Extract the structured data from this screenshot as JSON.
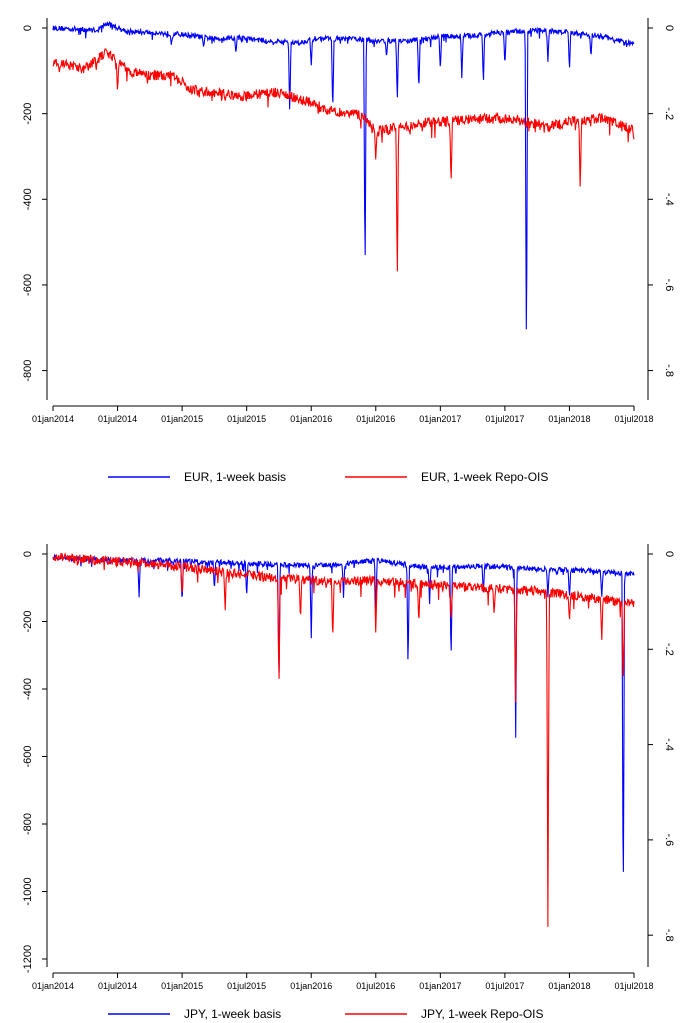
{
  "chart_data": [
    {
      "type": "line",
      "x_ticks": [
        "01jan2014",
        "01jul2014",
        "01jan2015",
        "01jul2015",
        "01jan2016",
        "01jul2016",
        "01jan2017",
        "01jul2017",
        "01jan2018",
        "01jul2018"
      ],
      "y_left_ticks": [
        "0",
        "-200",
        "-400",
        "-600",
        "-800"
      ],
      "y_right_ticks": [
        "0",
        "-.2",
        "-.4",
        "-.6",
        "-.8"
      ],
      "ylim_left": [
        -850,
        0
      ],
      "ylim_right": [
        -0.85,
        0
      ],
      "series": [
        {
          "name": "EUR, 1-week basis",
          "color": "#0000ff",
          "axis": "left",
          "base": [
            [
              0,
              0
            ],
            [
              4,
              -5
            ],
            [
              5,
              10
            ],
            [
              7,
              -8
            ],
            [
              12,
              -15
            ],
            [
              15,
              -25
            ],
            [
              17,
              -22
            ],
            [
              20,
              -30
            ],
            [
              23,
              -35
            ],
            [
              24,
              -25
            ],
            [
              28,
              -25
            ],
            [
              30,
              -30
            ],
            [
              33,
              -30
            ],
            [
              36,
              -20
            ],
            [
              39,
              -18
            ],
            [
              42,
              -10
            ],
            [
              45,
              -5
            ],
            [
              48,
              -10
            ],
            [
              51,
              -20
            ],
            [
              54,
              -38
            ]
          ],
          "spikes": [
            [
              11,
              -40
            ],
            [
              14,
              -45
            ],
            [
              17,
              -60
            ],
            [
              22,
              -200
            ],
            [
              24,
              -90
            ],
            [
              26,
              -200
            ],
            [
              29,
              -590
            ],
            [
              31,
              -70
            ],
            [
              32,
              -170
            ],
            [
              34,
              -150
            ],
            [
              36,
              -100
            ],
            [
              38,
              -120
            ],
            [
              40,
              -130
            ],
            [
              42,
              -90
            ],
            [
              44,
              -800
            ],
            [
              46,
              -80
            ],
            [
              48,
              -100
            ],
            [
              50,
              -70
            ]
          ],
          "noise": 6
        },
        {
          "name": "EUR, 1-week Repo-OIS",
          "color": "#ff0000",
          "axis": "left",
          "base": [
            [
              0,
              -80
            ],
            [
              3,
              -95
            ],
            [
              5,
              -55
            ],
            [
              7,
              -100
            ],
            [
              9,
              -110
            ],
            [
              11,
              -110
            ],
            [
              13,
              -145
            ],
            [
              15,
              -150
            ],
            [
              17,
              -160
            ],
            [
              19,
              -155
            ],
            [
              21,
              -150
            ],
            [
              24,
              -175
            ],
            [
              26,
              -195
            ],
            [
              28,
              -200
            ],
            [
              29,
              -210
            ],
            [
              30,
              -240
            ],
            [
              33,
              -230
            ],
            [
              35,
              -220
            ],
            [
              38,
              -215
            ],
            [
              42,
              -210
            ],
            [
              44,
              -220
            ],
            [
              46,
              -230
            ],
            [
              48,
              -220
            ],
            [
              51,
              -210
            ],
            [
              53,
              -230
            ],
            [
              54,
              -240
            ]
          ],
          "spikes": [
            [
              6,
              -150
            ],
            [
              16,
              -170
            ],
            [
              30,
              -310
            ],
            [
              32,
              -590
            ],
            [
              37,
              -370
            ],
            [
              45,
              -220
            ],
            [
              49,
              -380
            ],
            [
              54,
              -260
            ]
          ],
          "noise": 12
        }
      ]
    },
    {
      "type": "line",
      "x_ticks": [
        "01jan2014",
        "01jul2014",
        "01jan2015",
        "01jul2015",
        "01jan2016",
        "01jul2016",
        "01jan2017",
        "01jul2017",
        "01jan2018",
        "01jul2018"
      ],
      "y_left_ticks": [
        "0",
        "-200",
        "-400",
        "-600",
        "-800",
        "-1000",
        "-1200"
      ],
      "y_right_ticks": [
        "0",
        "-.2",
        "-.4",
        "-.6",
        "-.8"
      ],
      "ylim_left": [
        -1200,
        0
      ],
      "ylim_right": [
        -0.85,
        0
      ],
      "series": [
        {
          "name": "JPY, 1-week basis",
          "color": "#0000ff",
          "axis": "left",
          "base": [
            [
              0,
              -10
            ],
            [
              6,
              -20
            ],
            [
              10,
              -20
            ],
            [
              15,
              -25
            ],
            [
              20,
              -30
            ],
            [
              25,
              -35
            ],
            [
              30,
              -20
            ],
            [
              35,
              -40
            ],
            [
              40,
              -35
            ],
            [
              45,
              -45
            ],
            [
              50,
              -50
            ],
            [
              54,
              -60
            ]
          ],
          "spikes": [
            [
              8,
              -130
            ],
            [
              12,
              -150
            ],
            [
              15,
              -110
            ],
            [
              18,
              -130
            ],
            [
              21,
              -380
            ],
            [
              24,
              -260
            ],
            [
              27,
              -130
            ],
            [
              30,
              -180
            ],
            [
              33,
              -340
            ],
            [
              35,
              -150
            ],
            [
              37,
              -320
            ],
            [
              40,
              -120
            ],
            [
              43,
              -560
            ],
            [
              46,
              -130
            ],
            [
              48,
              -130
            ],
            [
              51,
              -130
            ],
            [
              53,
              -1100
            ]
          ],
          "noise": 8
        },
        {
          "name": "JPY, 1-week Repo-OIS",
          "color": "#ff0000",
          "axis": "left",
          "base": [
            [
              0,
              -10
            ],
            [
              5,
              -20
            ],
            [
              10,
              -30
            ],
            [
              15,
              -50
            ],
            [
              20,
              -70
            ],
            [
              25,
              -80
            ],
            [
              30,
              -80
            ],
            [
              35,
              -90
            ],
            [
              40,
              -100
            ],
            [
              45,
              -110
            ],
            [
              50,
              -130
            ],
            [
              54,
              -150
            ]
          ],
          "spikes": [
            [
              12,
              -130
            ],
            [
              16,
              -170
            ],
            [
              21,
              -400
            ],
            [
              23,
              -200
            ],
            [
              26,
              -260
            ],
            [
              30,
              -240
            ],
            [
              34,
              -210
            ],
            [
              37,
              -200
            ],
            [
              41,
              -180
            ],
            [
              43,
              -450
            ],
            [
              46,
              -1120
            ],
            [
              48,
              -200
            ],
            [
              51,
              -260
            ],
            [
              53,
              -400
            ]
          ],
          "noise": 14
        }
      ]
    }
  ],
  "colors": {
    "blue": "#0000ff",
    "red": "#ff0000",
    "axis": "#000000"
  }
}
